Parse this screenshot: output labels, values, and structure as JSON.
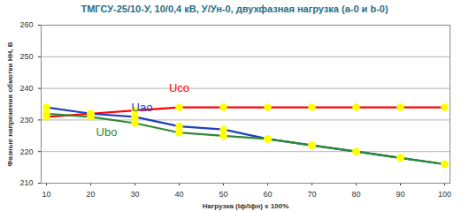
{
  "chart_data": {
    "type": "line",
    "title": "ТМГСУ-25/10-У, 10/0,4 кВ, У/Ун-0, двухфазная нагрузка (a-0  и  b-0)",
    "x_label": "Нагрузка (Iф/Iфн) х 100%",
    "y_label": "Фазные напряжения обмотки НН, В",
    "x": [
      10,
      20,
      30,
      40,
      50,
      60,
      70,
      80,
      90,
      100
    ],
    "series": [
      {
        "name": "Uco",
        "color": "#ff0000",
        "values": [
          231,
          232,
          233,
          234,
          234,
          234,
          234,
          234,
          234,
          234
        ]
      },
      {
        "name": "Uao",
        "color": "#1f3fbf",
        "values": [
          234,
          232,
          231,
          228,
          227,
          224,
          222,
          220,
          218,
          216
        ]
      },
      {
        "name": "Ubo",
        "color": "#2e8b2e",
        "values": [
          232,
          231,
          229,
          226,
          225,
          224,
          222,
          220,
          218,
          216
        ]
      }
    ],
    "xlim": [
      10,
      100
    ],
    "xticks": [
      10,
      20,
      30,
      40,
      50,
      60,
      70,
      80,
      90,
      100
    ],
    "ylim": [
      210,
      260
    ],
    "yticks": [
      210,
      220,
      230,
      240,
      250,
      260
    ],
    "grid": true,
    "marker": "circle"
  }
}
